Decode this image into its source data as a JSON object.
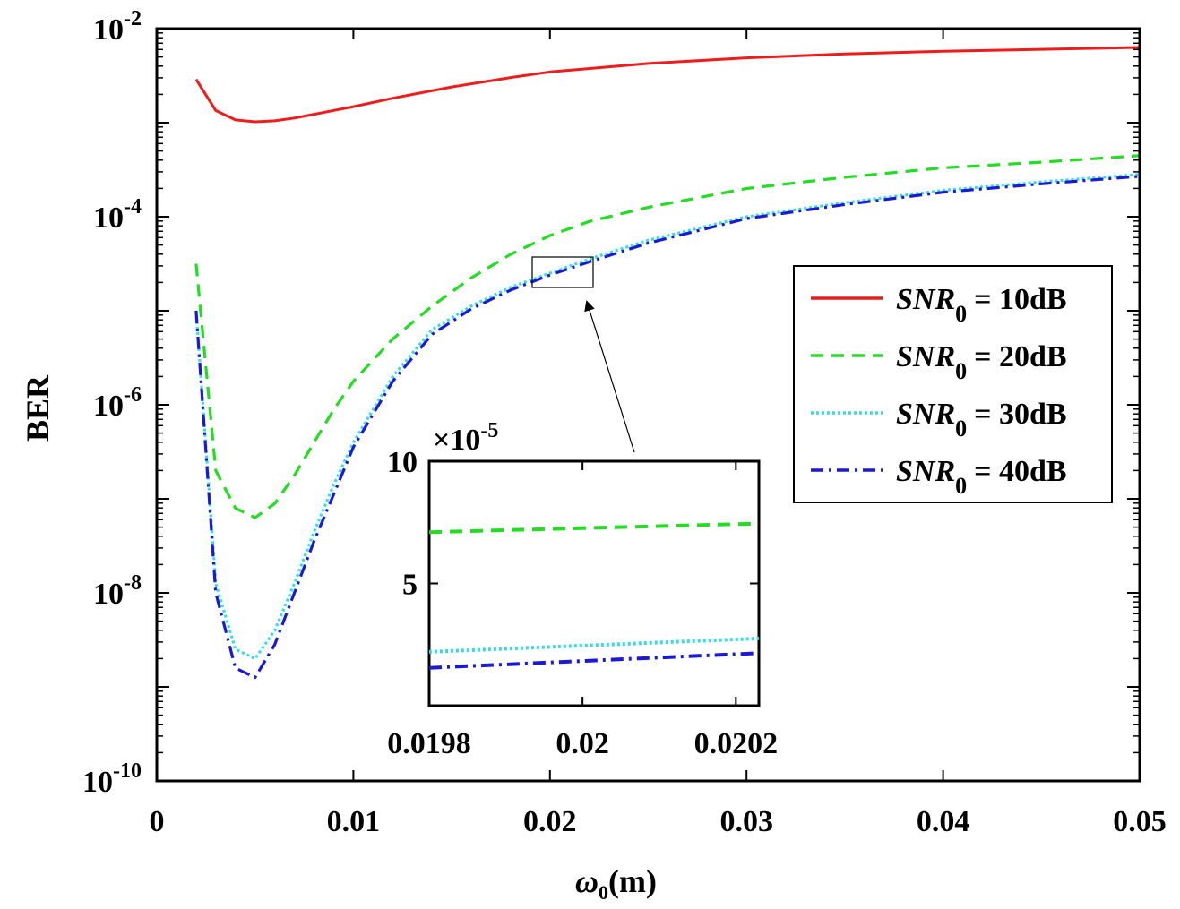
{
  "chart_data": [
    {
      "type": "line",
      "scale": "log-y",
      "xlabel_symbol": "ω",
      "xlabel_sub": "0",
      "xlabel_unit": "(m)",
      "ylabel": "BER",
      "xlim": [
        0,
        0.05
      ],
      "ylim_exp": [
        -10,
        -2
      ],
      "x_ticks": [
        0,
        0.01,
        0.02,
        0.03,
        0.04,
        0.05
      ],
      "x_tick_labels": [
        "0",
        "0.01",
        "0.02",
        "0.03",
        "0.04",
        "0.05"
      ],
      "y_ticks_exp": [
        -10,
        -8,
        -6,
        -4,
        -2
      ],
      "legend_position": "right",
      "series": [
        {
          "name_var": "SNR",
          "name_sub": "0",
          "name_rest": "= 10dB",
          "color": "#ee1c1c",
          "dash": "solid",
          "x": [
            0.002,
            0.003,
            0.004,
            0.005,
            0.006,
            0.007,
            0.008,
            0.01,
            0.012,
            0.015,
            0.018,
            0.02,
            0.025,
            0.03,
            0.035,
            0.04,
            0.045,
            0.05
          ],
          "exp": [
            -2.54,
            -2.87,
            -2.97,
            -2.99,
            -2.98,
            -2.95,
            -2.91,
            -2.83,
            -2.74,
            -2.62,
            -2.52,
            -2.46,
            -2.37,
            -2.31,
            -2.27,
            -2.24,
            -2.22,
            -2.2
          ]
        },
        {
          "name_var": "SNR",
          "name_sub": "0",
          "name_rest": "= 20dB",
          "color": "#22dd22",
          "dash": "dashed",
          "x": [
            0.002,
            0.003,
            0.004,
            0.005,
            0.006,
            0.007,
            0.008,
            0.009,
            0.01,
            0.012,
            0.014,
            0.016,
            0.018,
            0.02,
            0.022,
            0.025,
            0.03,
            0.035,
            0.04,
            0.045,
            0.05
          ],
          "exp": [
            -4.5,
            -6.7,
            -7.1,
            -7.2,
            -7.05,
            -6.75,
            -6.4,
            -6.05,
            -5.75,
            -5.3,
            -4.95,
            -4.65,
            -4.4,
            -4.2,
            -4.05,
            -3.9,
            -3.7,
            -3.58,
            -3.48,
            -3.42,
            -3.35
          ]
        },
        {
          "name_var": "SNR",
          "name_sub": "0",
          "name_rest": "= 30dB",
          "color": "#33ddee",
          "dash": "dotted",
          "x": [
            0.002,
            0.003,
            0.004,
            0.005,
            0.006,
            0.007,
            0.008,
            0.009,
            0.01,
            0.012,
            0.014,
            0.016,
            0.018,
            0.02,
            0.022,
            0.025,
            0.03,
            0.035,
            0.04,
            0.045,
            0.05
          ],
          "exp": [
            -5.0,
            -7.9,
            -8.6,
            -8.7,
            -8.4,
            -7.9,
            -7.35,
            -6.85,
            -6.4,
            -5.7,
            -5.2,
            -4.95,
            -4.75,
            -4.6,
            -4.45,
            -4.25,
            -4.0,
            -3.85,
            -3.72,
            -3.63,
            -3.55
          ]
        },
        {
          "name_var": "SNR",
          "name_sub": "0",
          "name_rest": "= 40dB",
          "color": "#1a1ad4",
          "dash": "dashdot",
          "x": [
            0.002,
            0.003,
            0.004,
            0.005,
            0.006,
            0.007,
            0.008,
            0.009,
            0.01,
            0.012,
            0.014,
            0.016,
            0.018,
            0.02,
            0.022,
            0.025,
            0.03,
            0.035,
            0.04,
            0.045,
            0.05
          ],
          "exp": [
            -5.0,
            -8.0,
            -8.8,
            -8.9,
            -8.55,
            -8.0,
            -7.45,
            -6.95,
            -6.45,
            -5.75,
            -5.25,
            -4.98,
            -4.78,
            -4.62,
            -4.48,
            -4.28,
            -4.02,
            -3.87,
            -3.74,
            -3.65,
            -3.57
          ]
        }
      ]
    },
    {
      "type": "line",
      "role": "inset",
      "xlim": [
        0.0198,
        0.02023
      ],
      "ylim": [
        0,
        10
      ],
      "scale_label_prefix": "×10",
      "scale_label_exp": "-5",
      "x_tick_labels": [
        "0.0198",
        "0.02",
        "0.0202"
      ],
      "x_ticks": [
        0.0198,
        0.02,
        0.0202
      ],
      "y_tick_labels": [
        "5",
        "10"
      ],
      "y_ticks": [
        5,
        10
      ],
      "series": [
        {
          "name": "SNR0 = 20dB",
          "color": "#22dd22",
          "dash": "dashed",
          "x": [
            0.0198,
            0.02023
          ],
          "y": [
            7.1,
            7.45
          ]
        },
        {
          "name": "SNR0 = 30dB",
          "color": "#33ddee",
          "dash": "dotted",
          "x": [
            0.0198,
            0.02023
          ],
          "y": [
            2.2,
            2.75
          ]
        },
        {
          "name": "SNR0 = 40dB",
          "color": "#1a1ad4",
          "dash": "dashdot",
          "x": [
            0.0198,
            0.02023
          ],
          "y": [
            1.55,
            2.15
          ]
        }
      ]
    }
  ]
}
